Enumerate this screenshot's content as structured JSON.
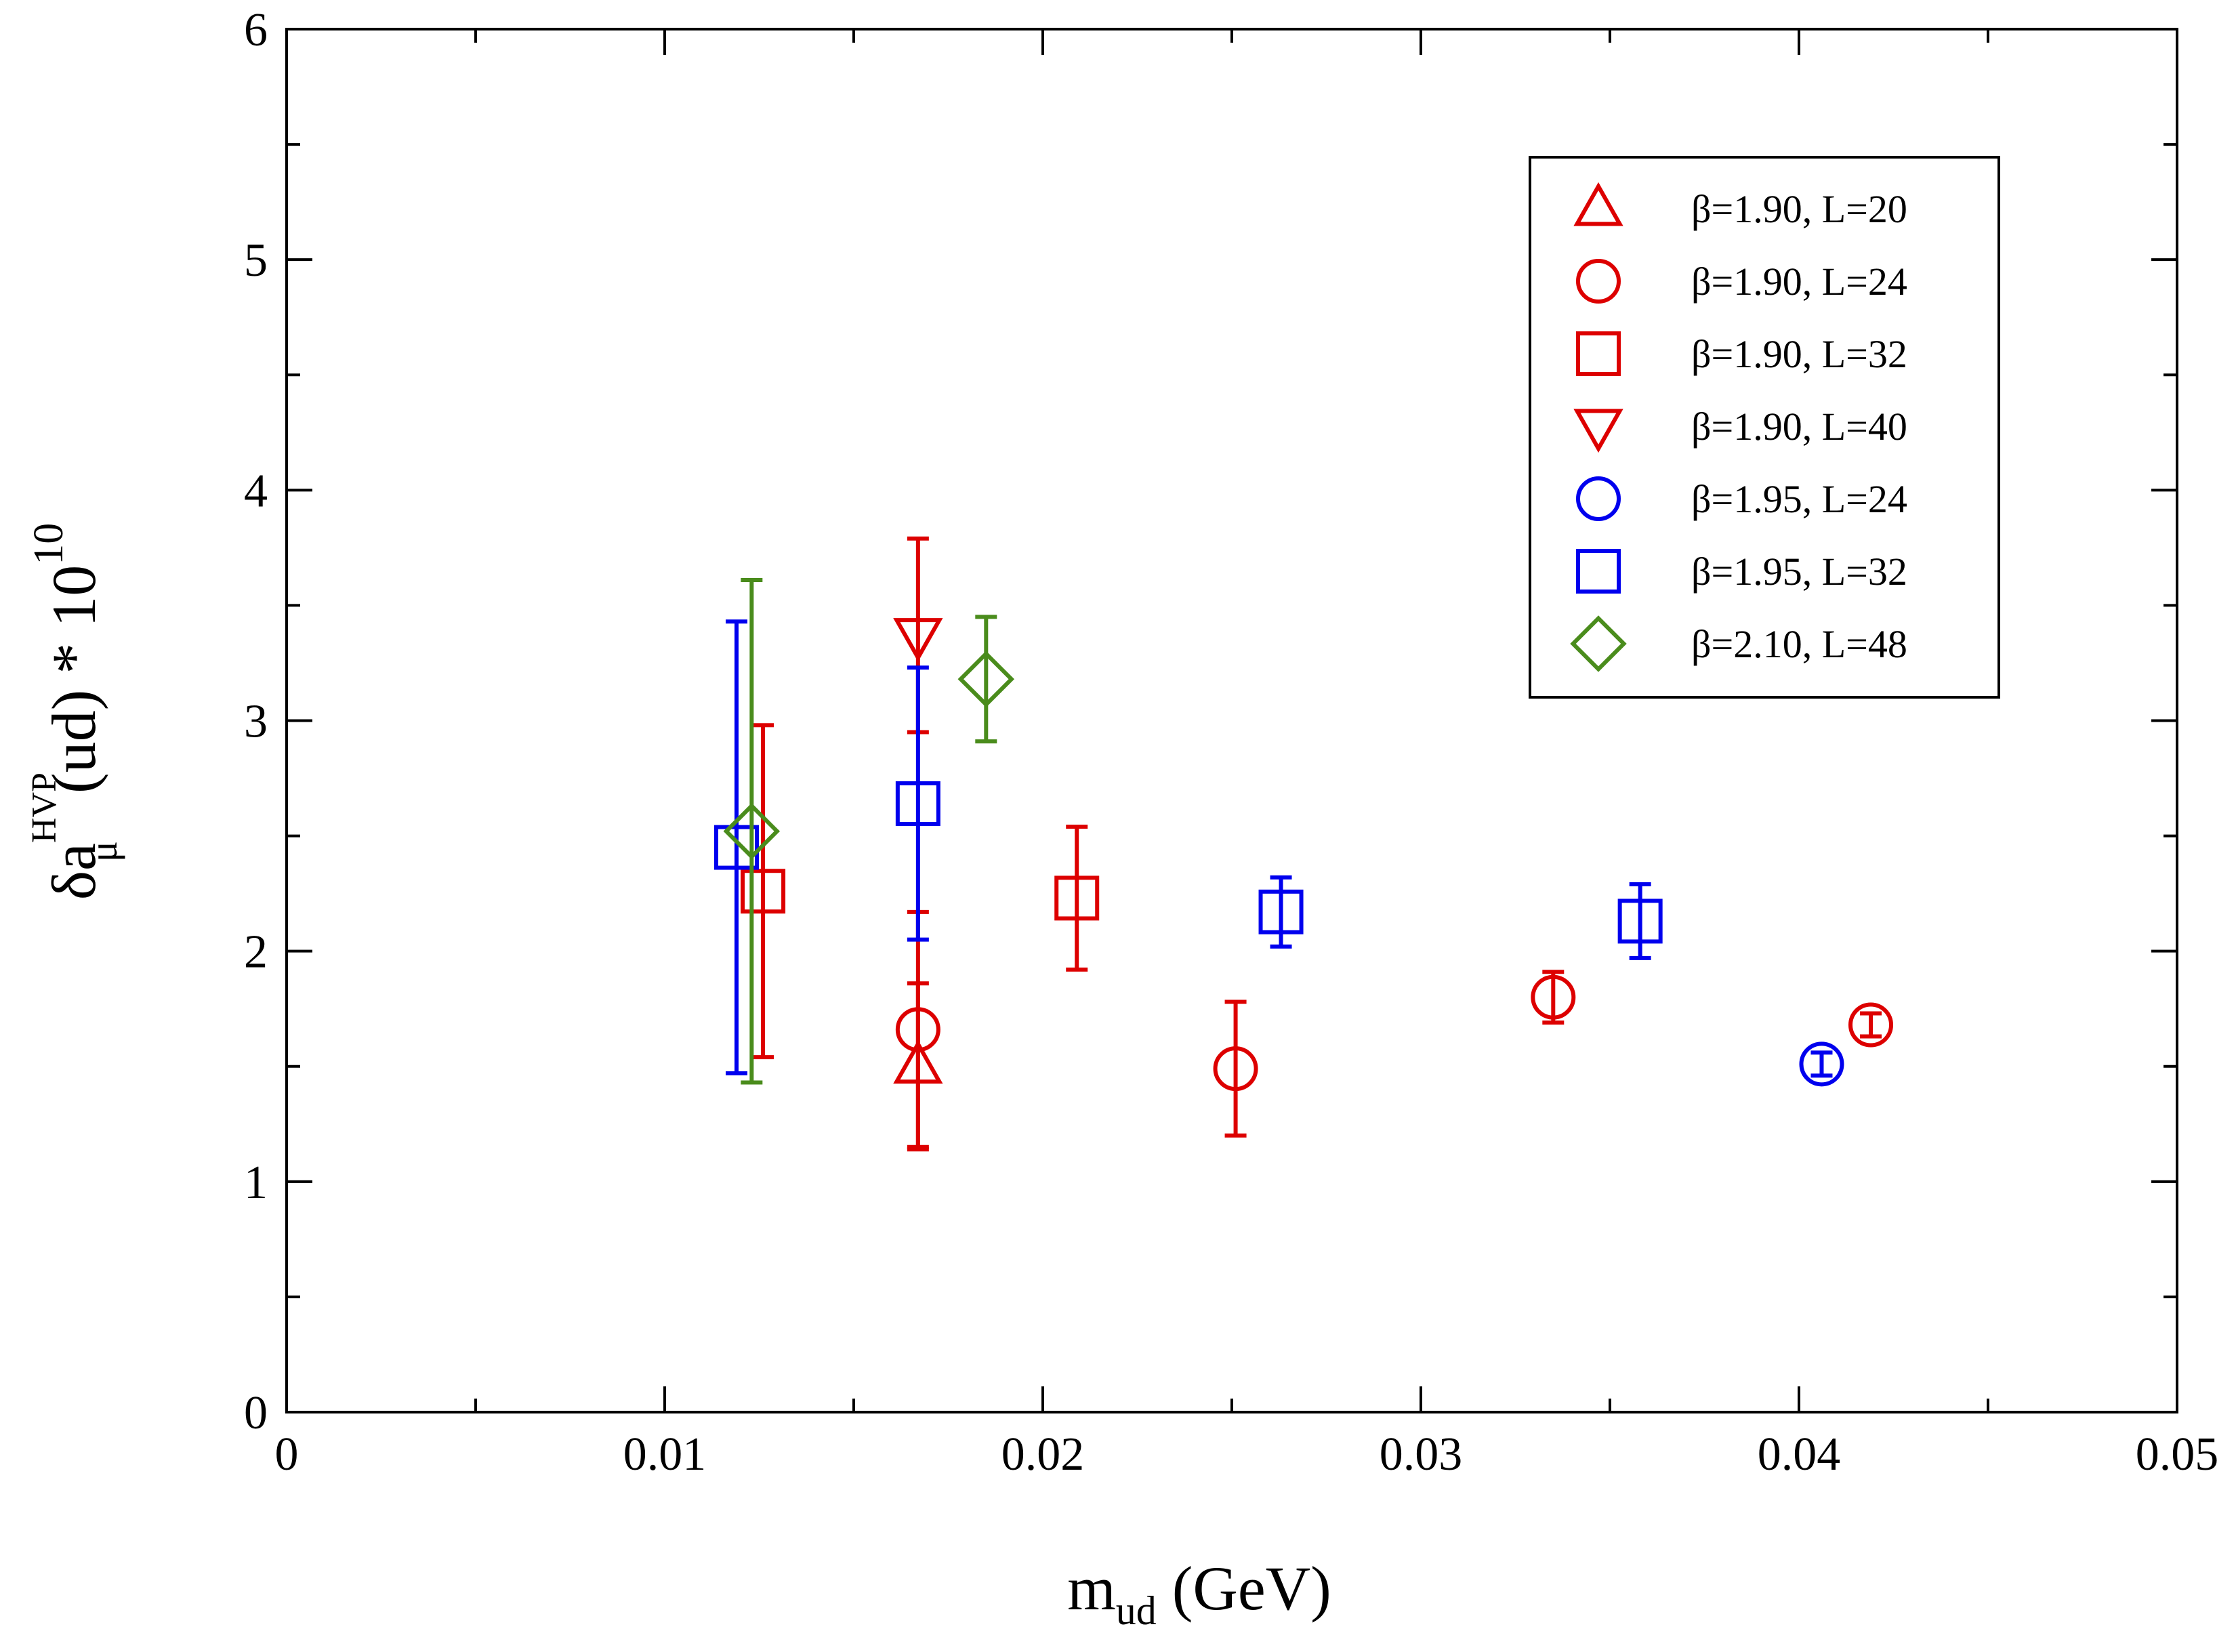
{
  "chart_data": {
    "type": "scatter",
    "title": "",
    "xlabel": {
      "main": "m",
      "sub": "ud",
      "unit": "(GeV)"
    },
    "ylabel": {
      "prefix": "δa",
      "sup": "HVP",
      "sub": "μ",
      "mid": "(ud) * 10",
      "exp": "10"
    },
    "xlim": [
      0,
      0.05
    ],
    "ylim": [
      0,
      6
    ],
    "xticks": [
      0,
      0.01,
      0.02,
      0.03,
      0.04,
      0.05
    ],
    "xtick_labels": [
      "0",
      "0.01",
      "0.02",
      "0.03",
      "0.04",
      "0.05"
    ],
    "yticks": [
      0,
      1,
      2,
      3,
      4,
      5,
      6
    ],
    "ytick_labels": [
      "0",
      "1",
      "2",
      "3",
      "4",
      "5",
      "6"
    ],
    "x_minor_step": 0.005,
    "y_minor_step": 0.5,
    "grid": false,
    "legend_position": "top-right",
    "series": [
      {
        "name": "β=1.90, L=20",
        "marker": "triangle-up",
        "color": "#dd0000",
        "points": [
          {
            "x": 0.0167,
            "y": 1.5,
            "err": 0.36
          }
        ]
      },
      {
        "name": "β=1.90, L=24",
        "marker": "circle",
        "color": "#dd0000",
        "points": [
          {
            "x": 0.0167,
            "y": 1.66,
            "err": 0.51
          },
          {
            "x": 0.0251,
            "y": 1.49,
            "err": 0.29
          },
          {
            "x": 0.0335,
            "y": 1.8,
            "err": 0.11
          },
          {
            "x": 0.0419,
            "y": 1.68,
            "err": 0.05
          }
        ]
      },
      {
        "name": "β=1.90, L=32",
        "marker": "square",
        "color": "#dd0000",
        "points": [
          {
            "x": 0.0126,
            "y": 2.26,
            "err": 0.72
          },
          {
            "x": 0.0209,
            "y": 2.23,
            "err": 0.31
          }
        ]
      },
      {
        "name": "β=1.90, L=40",
        "marker": "triangle-down",
        "color": "#dd0000",
        "points": [
          {
            "x": 0.0167,
            "y": 3.37,
            "err": 0.42
          }
        ]
      },
      {
        "name": "β=1.95, L=24",
        "marker": "circle",
        "color": "#0000ee",
        "points": [
          {
            "x": 0.0406,
            "y": 1.51,
            "err": 0.05
          }
        ]
      },
      {
        "name": "β=1.95, L=32",
        "marker": "square",
        "color": "#0000ee",
        "points": [
          {
            "x": 0.0119,
            "y": 2.45,
            "err": 0.98
          },
          {
            "x": 0.0167,
            "y": 2.64,
            "err": 0.59
          },
          {
            "x": 0.0263,
            "y": 2.17,
            "err": 0.15
          },
          {
            "x": 0.0358,
            "y": 2.13,
            "err": 0.16
          }
        ]
      },
      {
        "name": "β=2.10, L=48",
        "marker": "diamond",
        "color": "#4a8c1c",
        "points": [
          {
            "x": 0.0123,
            "y": 2.52,
            "err": 1.09
          },
          {
            "x": 0.0185,
            "y": 3.18,
            "err": 0.27
          }
        ]
      }
    ]
  }
}
